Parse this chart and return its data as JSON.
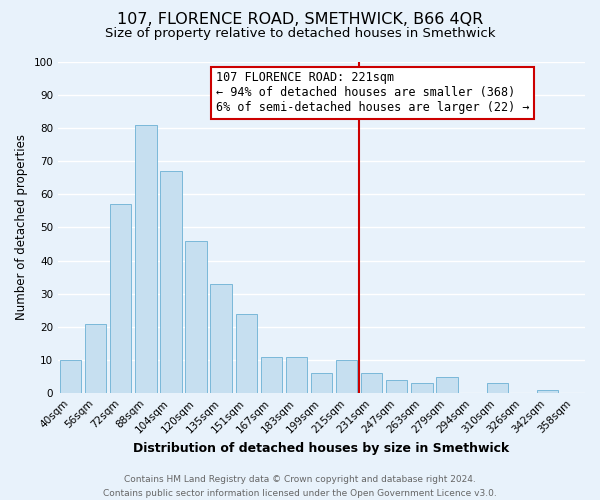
{
  "title": "107, FLORENCE ROAD, SMETHWICK, B66 4QR",
  "subtitle": "Size of property relative to detached houses in Smethwick",
  "xlabel": "Distribution of detached houses by size in Smethwick",
  "ylabel": "Number of detached properties",
  "bar_labels": [
    "40sqm",
    "56sqm",
    "72sqm",
    "88sqm",
    "104sqm",
    "120sqm",
    "135sqm",
    "151sqm",
    "167sqm",
    "183sqm",
    "199sqm",
    "215sqm",
    "231sqm",
    "247sqm",
    "263sqm",
    "279sqm",
    "294sqm",
    "310sqm",
    "326sqm",
    "342sqm",
    "358sqm"
  ],
  "bar_values": [
    10,
    21,
    57,
    81,
    67,
    46,
    33,
    24,
    11,
    11,
    6,
    10,
    6,
    4,
    3,
    5,
    0,
    3,
    0,
    1,
    0
  ],
  "bar_color": "#c6dff0",
  "bar_edge_color": "#7ab8d9",
  "annotation_title": "107 FLORENCE ROAD: 221sqm",
  "annotation_line1": "← 94% of detached houses are smaller (368)",
  "annotation_line2": "6% of semi-detached houses are larger (22) →",
  "annotation_box_color": "#ffffff",
  "annotation_box_edge_color": "#cc0000",
  "vline_color": "#cc0000",
  "vline_label": "215sqm",
  "ylim": [
    0,
    100
  ],
  "yticks": [
    0,
    10,
    20,
    30,
    40,
    50,
    60,
    70,
    80,
    90,
    100
  ],
  "footer_line1": "Contains HM Land Registry data © Crown copyright and database right 2024.",
  "footer_line2": "Contains public sector information licensed under the Open Government Licence v3.0.",
  "background_color": "#e8f2fb",
  "plot_bg_color": "#e8f2fb",
  "grid_color": "#ffffff",
  "title_fontsize": 11.5,
  "subtitle_fontsize": 9.5,
  "xlabel_fontsize": 9,
  "ylabel_fontsize": 8.5,
  "tick_fontsize": 7.5,
  "annotation_fontsize": 8.5,
  "footer_fontsize": 6.5
}
